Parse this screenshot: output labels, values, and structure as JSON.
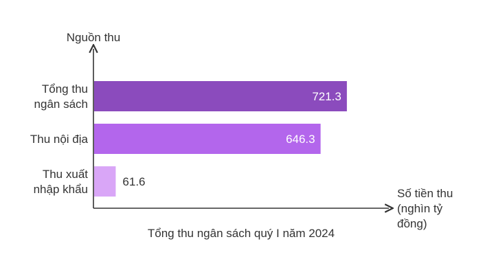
{
  "chart_data": {
    "type": "bar",
    "orientation": "horizontal",
    "title": "Tổng thu ngân sách quý I năm 2024",
    "ylabel": "Nguồn thu",
    "xlabel": "Số tiền thu (nghìn tỷ đồng)",
    "categories": [
      "Tổng thu ngân sách",
      "Thu nội địa",
      "Thu xuất nhập khẩu"
    ],
    "values": [
      721.3,
      646.3,
      61.6
    ],
    "value_labels": [
      "721.3",
      "646.3",
      "61.6"
    ],
    "xlim": [
      0,
      800
    ],
    "grid": false,
    "legend": "none",
    "colors": [
      "#8b4bbd",
      "#b366ec",
      "#d9a6f7"
    ]
  }
}
